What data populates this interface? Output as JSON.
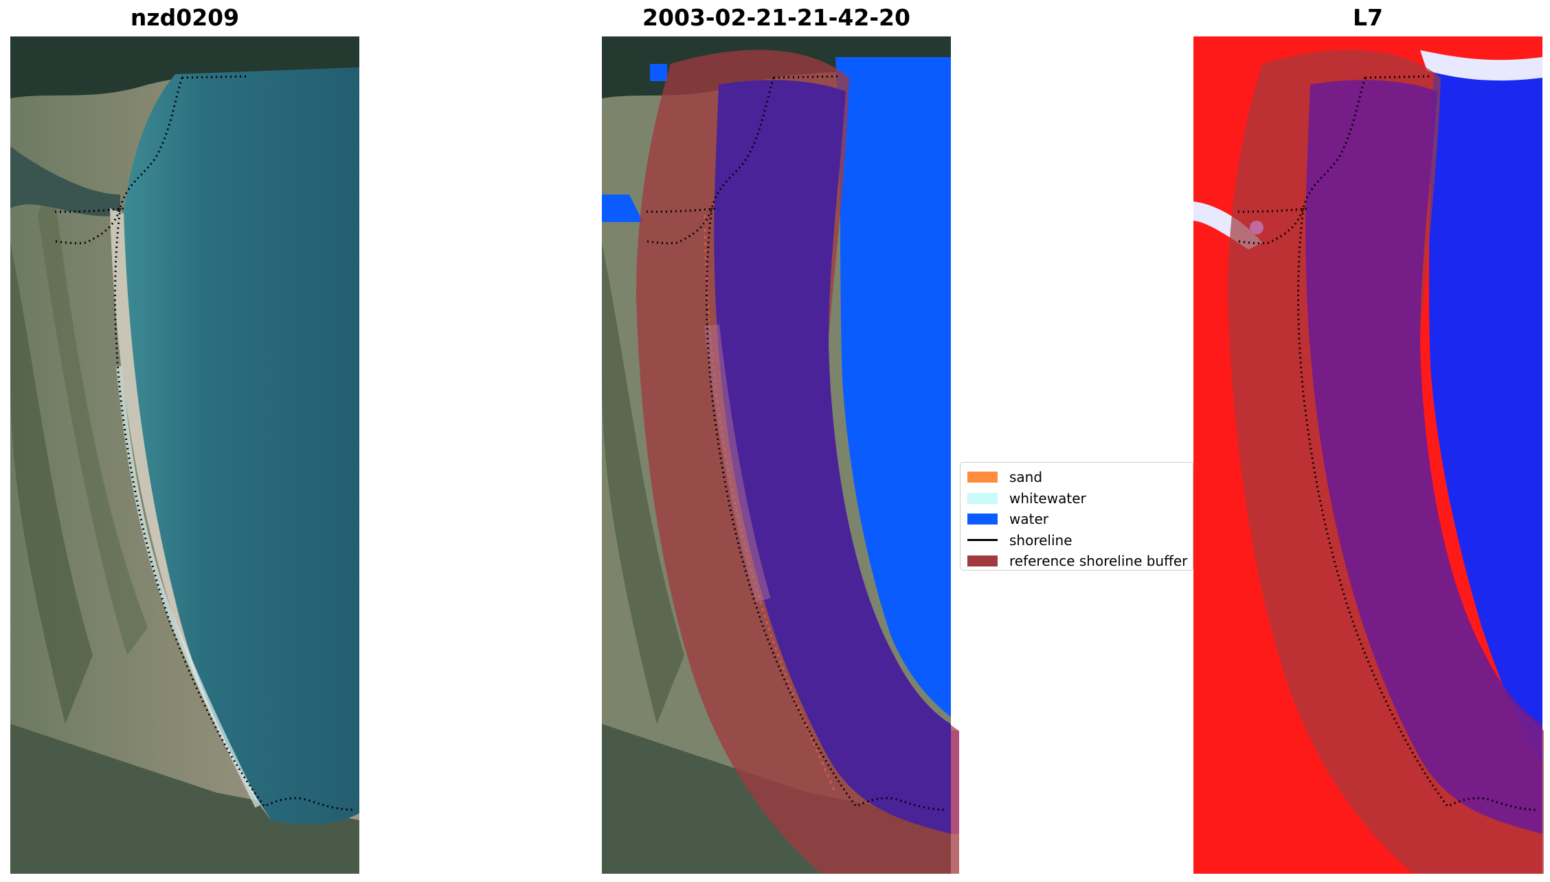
{
  "panels": [
    {
      "title": "nzd0209"
    },
    {
      "title": "2003-02-21-21-42-20"
    },
    {
      "title": "L7"
    }
  ],
  "legend": {
    "items": [
      {
        "label": "sand",
        "color": "#ff8c3a",
        "kind": "patch"
      },
      {
        "label": "whitewater",
        "color": "#c8fbf9",
        "kind": "patch"
      },
      {
        "label": "water",
        "color": "#0a5cff",
        "kind": "patch"
      },
      {
        "label": "shoreline",
        "color": "#000000",
        "kind": "line"
      },
      {
        "label": "reference shoreline buffer",
        "color": "#a13a3f",
        "kind": "patch"
      }
    ]
  }
}
